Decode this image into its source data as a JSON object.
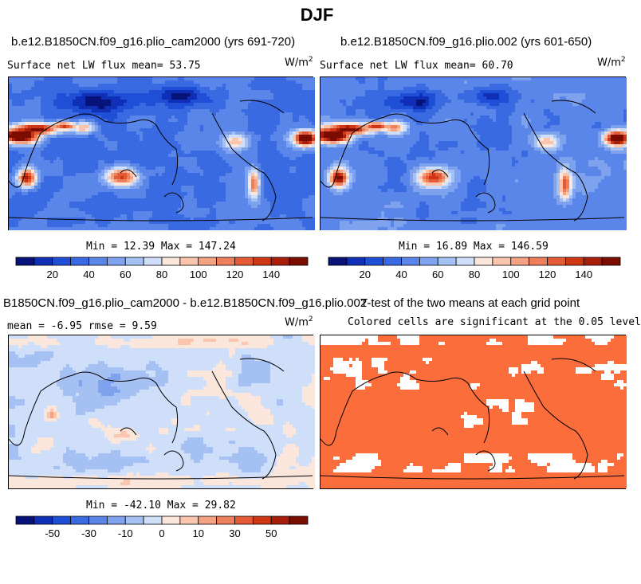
{
  "title": "DJF",
  "colors": {
    "flux_scale": [
      "#08137a",
      "#0f2fb6",
      "#1f4fd6",
      "#3a6ae2",
      "#5a86ea",
      "#7ea2ee",
      "#a5c0f2",
      "#cfdffa",
      "#fbe6dc",
      "#f9c5ad",
      "#f4a282",
      "#ee7f5c",
      "#e45a36",
      "#cf3614",
      "#a81e0a",
      "#7a0c00"
    ],
    "diff_scale": [
      "#08137a",
      "#0f2fb6",
      "#1f4fd6",
      "#3a6ae2",
      "#5a86ea",
      "#7ea2ee",
      "#a5c0f2",
      "#cfdffa",
      "#fbe6dc",
      "#f9c5ad",
      "#f4a282",
      "#ee7f5c",
      "#e45a36",
      "#cf3614",
      "#a81e0a",
      "#7a0c00"
    ],
    "ttest": "#fc6d3c"
  },
  "panels": {
    "case1": {
      "title": "b.e12.B1850CN.f09_g16.plio_cam2000 (yrs 691-720)",
      "label": "Surface net LW flux mean=  53.75",
      "units": "W/m",
      "units_sup": "2",
      "min_max": "Min =  12.39 Max = 147.24",
      "colorbar_ticks": [
        "20",
        "40",
        "60",
        "80",
        "100",
        "120",
        "140"
      ]
    },
    "case2": {
      "title": "b.e12.B1850CN.f09_g16.plio.002 (yrs 601-650)",
      "label": "Surface net LW flux mean=  60.70",
      "units": "W/m",
      "units_sup": "2",
      "min_max": "Min =  16.89 Max = 146.59",
      "colorbar_ticks": [
        "20",
        "40",
        "60",
        "80",
        "100",
        "120",
        "140"
      ]
    },
    "diff": {
      "title": "B1850CN.f09_g16.plio_cam2000 - b.e12.B1850CN.f09_g16.plio.002",
      "label": "mean =  -6.95     rmse =   9.59",
      "units": "W/m",
      "units_sup": "2",
      "min_max": "Min = -42.10 Max =  29.82",
      "colorbar_ticks": [
        "-50",
        "-30",
        "-10",
        "0",
        "10",
        "30",
        "50"
      ]
    },
    "ttest": {
      "title": "T-test of the two means at each grid point",
      "label": "Colored cells are significant at the 0.05 level"
    }
  },
  "chart_data": [
    {
      "type": "heatmap",
      "title": "b.e12.B1850CN.f09_g16.plio_cam2000 (yrs 691-720)",
      "mean": 53.75,
      "min": 12.39,
      "max": 147.24,
      "units": "W/m2",
      "colorbar": [
        20,
        40,
        60,
        80,
        100,
        120,
        140
      ]
    },
    {
      "type": "heatmap",
      "title": "b.e12.B1850CN.f09_g16.plio.002 (yrs 601-650)",
      "mean": 60.7,
      "min": 16.89,
      "max": 146.59,
      "units": "W/m2",
      "colorbar": [
        20,
        40,
        60,
        80,
        100,
        120,
        140
      ]
    },
    {
      "type": "heatmap",
      "title": "B1850CN.f09_g16.plio_cam2000 - b.e12.B1850CN.f09_g16.plio.002",
      "mean": -6.95,
      "rmse": 9.59,
      "min": -42.1,
      "max": 29.82,
      "units": "W/m2",
      "colorbar": [
        -50,
        -30,
        -10,
        0,
        10,
        30,
        50
      ]
    },
    {
      "type": "heatmap",
      "title": "T-test of the two means at each grid point",
      "significance_level": 0.05
    }
  ]
}
